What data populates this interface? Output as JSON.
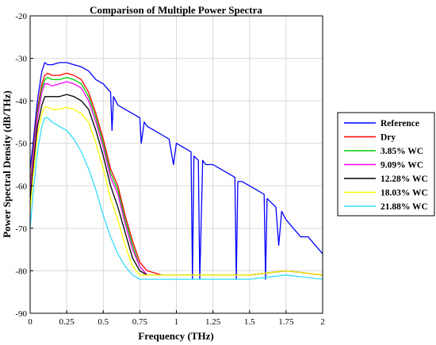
{
  "chart_data": {
    "type": "line",
    "title": "Comparison of Multiple Power Spectra",
    "xlabel": "Frequency (THz)",
    "ylabel": "Power Spectral Density (dB/THz)",
    "xlim": [
      0,
      2
    ],
    "ylim": [
      -90,
      -20
    ],
    "xticks": [
      0,
      0.25,
      0.5,
      0.75,
      1,
      1.25,
      1.5,
      1.75,
      2
    ],
    "xtick_labels": [
      "0",
      "0.25",
      "0.5",
      "0.75",
      "1",
      "1.25",
      "1.5",
      "1.75",
      "2"
    ],
    "yticks": [
      -90,
      -80,
      -70,
      -60,
      -50,
      -40,
      -30,
      -20
    ],
    "ytick_labels": [
      "-90",
      "-80",
      "-70",
      "-60",
      "-50",
      "-40",
      "-30",
      "-20"
    ],
    "grid": true,
    "legend_position": "right",
    "series": [
      {
        "name": "Reference",
        "color": "#0000ff",
        "x": [
          0,
          0.02,
          0.05,
          0.08,
          0.1,
          0.12,
          0.15,
          0.2,
          0.25,
          0.3,
          0.35,
          0.4,
          0.45,
          0.5,
          0.55,
          0.56,
          0.57,
          0.6,
          0.65,
          0.7,
          0.75,
          0.76,
          0.78,
          0.8,
          0.85,
          0.9,
          0.95,
          0.98,
          1.0,
          1.05,
          1.1,
          1.11,
          1.12,
          1.15,
          1.16,
          1.18,
          1.2,
          1.25,
          1.3,
          1.35,
          1.4,
          1.41,
          1.42,
          1.45,
          1.5,
          1.55,
          1.6,
          1.61,
          1.62,
          1.65,
          1.68,
          1.7,
          1.72,
          1.75,
          1.8,
          1.85,
          1.9,
          1.95,
          2.0
        ],
        "y": [
          -56,
          -50,
          -40,
          -33,
          -31,
          -31.5,
          -31.5,
          -31,
          -31,
          -31.5,
          -32,
          -33,
          -35,
          -36,
          -38,
          -47,
          -39,
          -41,
          -42,
          -43,
          -44,
          -50,
          -45,
          -46,
          -47,
          -48,
          -49,
          -55,
          -50,
          -51,
          -52,
          -82,
          -53,
          -54,
          -82,
          -54,
          -55,
          -55,
          -56,
          -57,
          -58,
          -82,
          -59,
          -59,
          -60,
          -61,
          -62,
          -82,
          -63,
          -64,
          -65,
          -74,
          -66,
          -68,
          -70,
          -72,
          -72,
          -74,
          -76
        ]
      },
      {
        "name": "Dry",
        "color": "#ff0000",
        "x": [
          0,
          0.02,
          0.05,
          0.08,
          0.1,
          0.12,
          0.15,
          0.2,
          0.25,
          0.3,
          0.35,
          0.4,
          0.45,
          0.5,
          0.55,
          0.6,
          0.65,
          0.7,
          0.75,
          0.8,
          0.9,
          1.0,
          1.25,
          1.5,
          1.75,
          2.0
        ],
        "y": [
          -60,
          -52,
          -42,
          -36,
          -34,
          -33.5,
          -34,
          -34,
          -33.5,
          -34,
          -35,
          -38,
          -43,
          -49,
          -56,
          -60,
          -67,
          -73,
          -78,
          -80,
          -81,
          -81,
          -81,
          -81,
          -80,
          -81
        ]
      },
      {
        "name": "3.85% WC",
        "color": "#00cc00",
        "x": [
          0,
          0.02,
          0.05,
          0.08,
          0.1,
          0.12,
          0.15,
          0.2,
          0.25,
          0.3,
          0.35,
          0.4,
          0.45,
          0.5,
          0.55,
          0.6,
          0.65,
          0.7,
          0.75,
          0.8,
          0.9,
          1.0,
          1.25,
          1.5,
          1.75,
          2.0
        ],
        "y": [
          -61,
          -53,
          -43,
          -37,
          -35,
          -34.5,
          -35,
          -35,
          -34.5,
          -35,
          -36,
          -39,
          -44,
          -50,
          -57,
          -61,
          -68,
          -74,
          -79,
          -81,
          -81,
          -81,
          -81,
          -81,
          -80,
          -81
        ]
      },
      {
        "name": "9.09% WC",
        "color": "#ff00ff",
        "x": [
          0,
          0.02,
          0.05,
          0.08,
          0.1,
          0.12,
          0.15,
          0.2,
          0.25,
          0.3,
          0.35,
          0.4,
          0.45,
          0.5,
          0.55,
          0.6,
          0.65,
          0.7,
          0.75,
          0.8,
          0.9,
          1.0,
          1.25,
          1.5,
          1.75,
          2.0
        ],
        "y": [
          -62,
          -54,
          -44,
          -38,
          -36,
          -36,
          -36.5,
          -36,
          -35.5,
          -36,
          -37,
          -40,
          -45,
          -51,
          -58,
          -62,
          -69,
          -75,
          -79,
          -81,
          -81,
          -81,
          -81,
          -81,
          -80,
          -81
        ]
      },
      {
        "name": "12.28% WC",
        "color": "#000000",
        "x": [
          0,
          0.02,
          0.05,
          0.08,
          0.1,
          0.12,
          0.15,
          0.2,
          0.25,
          0.3,
          0.35,
          0.4,
          0.45,
          0.5,
          0.55,
          0.6,
          0.65,
          0.7,
          0.75,
          0.8,
          0.9,
          1.0,
          1.25,
          1.5,
          1.75,
          2.0
        ],
        "y": [
          -64,
          -56,
          -46,
          -41,
          -39,
          -39,
          -39,
          -39,
          -38.5,
          -39,
          -40,
          -42,
          -47,
          -53,
          -60,
          -65,
          -71,
          -77,
          -80,
          -81,
          -81,
          -81,
          -81,
          -81,
          -80,
          -81
        ]
      },
      {
        "name": "18.03% WC",
        "color": "#ffff00",
        "x": [
          0,
          0.02,
          0.05,
          0.08,
          0.1,
          0.12,
          0.15,
          0.2,
          0.25,
          0.3,
          0.35,
          0.4,
          0.45,
          0.5,
          0.55,
          0.6,
          0.65,
          0.7,
          0.75,
          0.8,
          0.9,
          1.0,
          1.25,
          1.5,
          1.75,
          2.0
        ],
        "y": [
          -66,
          -58,
          -48,
          -43,
          -41.5,
          -41.5,
          -42,
          -42,
          -41.5,
          -42,
          -43,
          -45,
          -50,
          -56,
          -63,
          -68,
          -74,
          -79,
          -81,
          -81,
          -81,
          -81,
          -81,
          -81,
          -80,
          -81
        ]
      },
      {
        "name": "21.88% WC",
        "color": "#33ddff",
        "x": [
          0,
          0.02,
          0.05,
          0.08,
          0.1,
          0.12,
          0.15,
          0.2,
          0.25,
          0.3,
          0.35,
          0.4,
          0.45,
          0.5,
          0.55,
          0.6,
          0.65,
          0.7,
          0.75,
          0.8,
          0.9,
          1.0,
          1.25,
          1.5,
          1.75,
          2.0
        ],
        "y": [
          -70,
          -62,
          -52,
          -46,
          -44,
          -44,
          -45,
          -46,
          -47,
          -49,
          -52,
          -56,
          -61,
          -67,
          -72,
          -76,
          -79,
          -81,
          -82,
          -82,
          -82,
          -82,
          -82,
          -82,
          -81,
          -82
        ]
      }
    ]
  }
}
